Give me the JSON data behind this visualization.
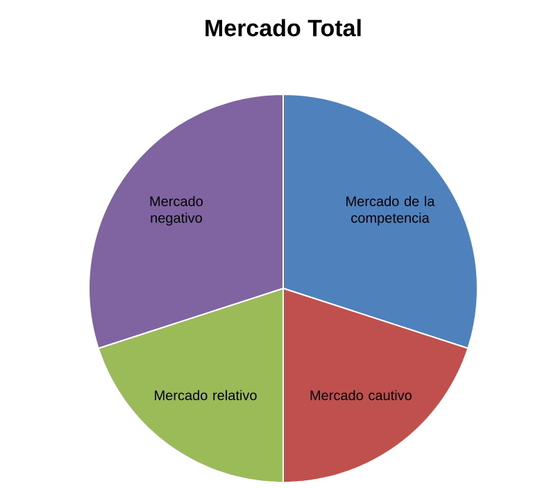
{
  "chart_data": {
    "type": "pie",
    "title": "Mercado Total",
    "categories": [
      "Mercado de la competencia",
      "Mercado cautivo",
      "Mercado relativo",
      "Mercado negativo"
    ],
    "values": [
      30,
      20,
      20,
      30
    ],
    "colors": [
      "#4f81bd",
      "#c0504d",
      "#9bbb59",
      "#8064a2"
    ]
  }
}
